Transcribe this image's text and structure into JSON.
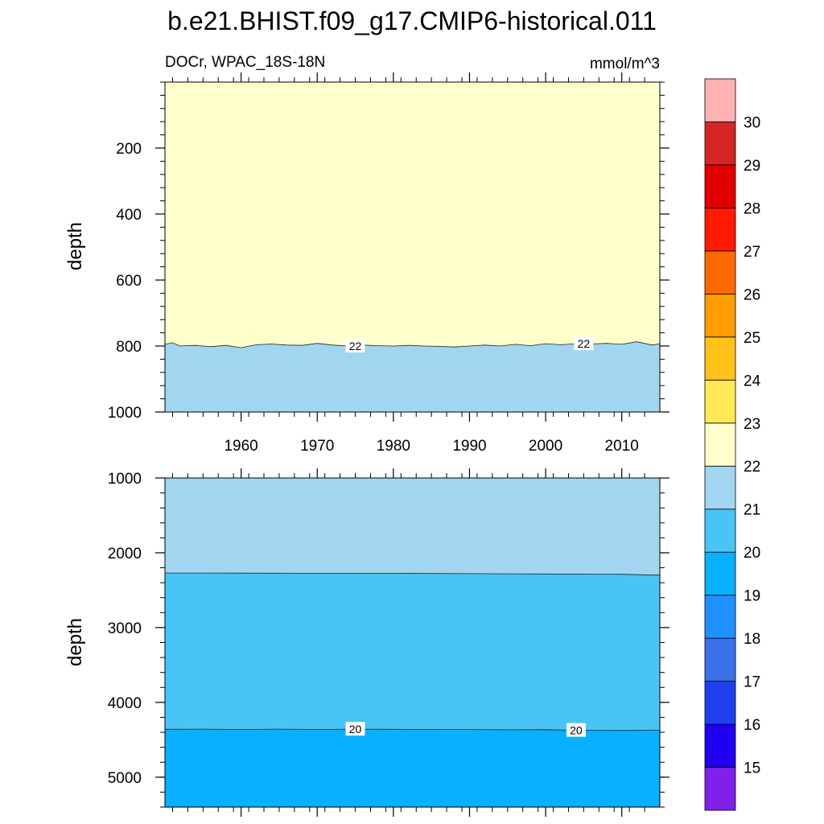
{
  "title": "b.e21.BHIST.f09_g17.CMIP6-historical.011",
  "left_subtitle": "DOCr, WPAC_18S-18N",
  "right_subtitle": "mmol/m^3",
  "chart_data": [
    {
      "type": "heatmap",
      "panel": "upper",
      "xlabel": "",
      "ylabel": "depth",
      "x_range": [
        1950,
        2015
      ],
      "x_ticks": [
        1960,
        1970,
        1980,
        1990,
        2000,
        2010
      ],
      "x_tick_labels": [
        "1960",
        "1970",
        "1980",
        "1990",
        "2000",
        "2010"
      ],
      "y_range": [
        0,
        1000
      ],
      "y_inverted": true,
      "y_ticks": [
        200,
        400,
        600,
        800,
        1000
      ],
      "y_tick_labels": [
        "200",
        "400",
        "600",
        "800",
        "1000"
      ],
      "contour_levels": [
        {
          "value": 22,
          "label": "22",
          "label_years": [
            1975,
            2005
          ],
          "years": [
            1950,
            1951,
            1952,
            1954,
            1956,
            1958,
            1960,
            1962,
            1964,
            1966,
            1968,
            1970,
            1972,
            1974,
            1976,
            1978,
            1980,
            1982,
            1984,
            1986,
            1988,
            1990,
            1992,
            1994,
            1996,
            1998,
            2000,
            2002,
            2004,
            2006,
            2008,
            2010,
            2012,
            2014,
            2015
          ],
          "depths": [
            795,
            790,
            800,
            798,
            802,
            798,
            805,
            796,
            794,
            797,
            798,
            792,
            797,
            800,
            797,
            799,
            800,
            798,
            800,
            801,
            803,
            800,
            797,
            800,
            795,
            799,
            793,
            796,
            793,
            794,
            792,
            795,
            787,
            797,
            793
          ]
        }
      ],
      "bands": [
        {
          "from": 22,
          "to": 23,
          "region": "above-contour"
        },
        {
          "from": 21,
          "to": 22,
          "region": "below-contour"
        }
      ]
    },
    {
      "type": "heatmap",
      "panel": "lower",
      "xlabel": "",
      "ylabel": "depth",
      "x_range": [
        1950,
        2015
      ],
      "x_ticks": [
        1960,
        1970,
        1980,
        1990,
        2000,
        2010
      ],
      "y_range": [
        1000,
        5400
      ],
      "y_inverted": true,
      "y_ticks": [
        1000,
        2000,
        3000,
        4000,
        5000
      ],
      "y_tick_labels": [
        "1000",
        "2000",
        "3000",
        "4000",
        "5000"
      ],
      "contour_levels": [
        {
          "value": 21,
          "label": "",
          "label_years": [],
          "years": [
            1950,
            1960,
            1970,
            1980,
            1990,
            2000,
            2010,
            2015
          ],
          "depths": [
            2270,
            2272,
            2274,
            2275,
            2279,
            2283,
            2288,
            2300
          ]
        },
        {
          "value": 20,
          "label": "20",
          "label_years": [
            1975,
            2004
          ],
          "years": [
            1950,
            1955,
            1960,
            1965,
            1970,
            1975,
            1980,
            1985,
            1990,
            1995,
            2000,
            2005,
            2010,
            2015
          ],
          "depths": [
            4360,
            4358,
            4362,
            4358,
            4362,
            4358,
            4360,
            4362,
            4363,
            4366,
            4365,
            4374,
            4376,
            4373
          ]
        }
      ],
      "bands": [
        {
          "from": 21,
          "to": 22,
          "region": "top"
        },
        {
          "from": 20,
          "to": 21,
          "region": "middle"
        },
        {
          "from": 19,
          "to": 20,
          "region": "bottom"
        }
      ]
    }
  ],
  "colorbar": {
    "labels": [
      "15",
      "16",
      "17",
      "18",
      "19",
      "20",
      "21",
      "22",
      "23",
      "24",
      "25",
      "26",
      "27",
      "28",
      "29",
      "30"
    ],
    "colors": [
      "#8020e8",
      "#2000f0",
      "#2040f0",
      "#3a70e8",
      "#2090ff",
      "#08b0ff",
      "#48c4f5",
      "#a2d6f0",
      "#ffffcc",
      "#ffe955",
      "#ffc11a",
      "#ff9c00",
      "#ff6a00",
      "#ff1a00",
      "#e00000",
      "#d42424",
      "#ffb2b2"
    ]
  }
}
